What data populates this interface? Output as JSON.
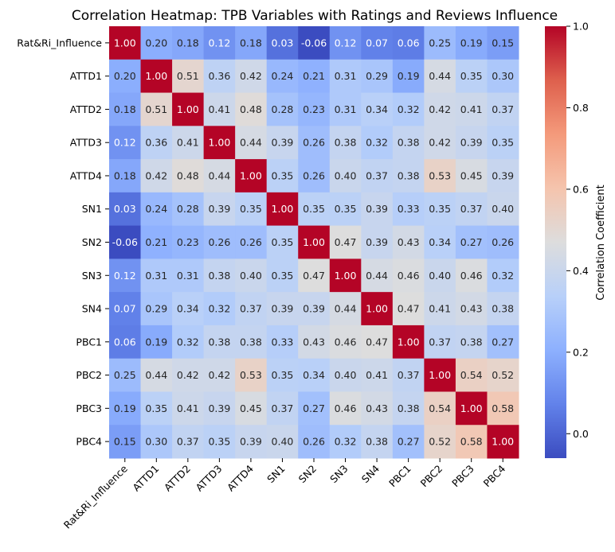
{
  "chart_data": {
    "type": "heatmap",
    "title": "Correlation Heatmap: TPB Variables with Ratings and Reviews Influence",
    "row_labels": [
      "Rat&Ri_Influence",
      "ATTD1",
      "ATTD2",
      "ATTD3",
      "ATTD4",
      "SN1",
      "SN2",
      "SN3",
      "SN4",
      "PBC1",
      "PBC2",
      "PBC3",
      "PBC4"
    ],
    "col_labels": [
      "Rat&Ri_Influence",
      "ATTD1",
      "ATTD2",
      "ATTD3",
      "ATTD4",
      "SN1",
      "SN2",
      "SN3",
      "SN4",
      "PBC1",
      "PBC2",
      "PBC3",
      "PBC4"
    ],
    "values": [
      [
        1.0,
        0.2,
        0.18,
        0.12,
        0.18,
        0.03,
        -0.06,
        0.12,
        0.07,
        0.06,
        0.25,
        0.19,
        0.15
      ],
      [
        0.2,
        1.0,
        0.51,
        0.36,
        0.42,
        0.24,
        0.21,
        0.31,
        0.29,
        0.19,
        0.44,
        0.35,
        0.3
      ],
      [
        0.18,
        0.51,
        1.0,
        0.41,
        0.48,
        0.28,
        0.23,
        0.31,
        0.34,
        0.32,
        0.42,
        0.41,
        0.37
      ],
      [
        0.12,
        0.36,
        0.41,
        1.0,
        0.44,
        0.39,
        0.26,
        0.38,
        0.32,
        0.38,
        0.42,
        0.39,
        0.35
      ],
      [
        0.18,
        0.42,
        0.48,
        0.44,
        1.0,
        0.35,
        0.26,
        0.4,
        0.37,
        0.38,
        0.53,
        0.45,
        0.39
      ],
      [
        0.03,
        0.24,
        0.28,
        0.39,
        0.35,
        1.0,
        0.35,
        0.35,
        0.39,
        0.33,
        0.35,
        0.37,
        0.4
      ],
      [
        -0.06,
        0.21,
        0.23,
        0.26,
        0.26,
        0.35,
        1.0,
        0.47,
        0.39,
        0.43,
        0.34,
        0.27,
        0.26
      ],
      [
        0.12,
        0.31,
        0.31,
        0.38,
        0.4,
        0.35,
        0.47,
        1.0,
        0.44,
        0.46,
        0.4,
        0.46,
        0.32
      ],
      [
        0.07,
        0.29,
        0.34,
        0.32,
        0.37,
        0.39,
        0.39,
        0.44,
        1.0,
        0.47,
        0.41,
        0.43,
        0.38
      ],
      [
        0.06,
        0.19,
        0.32,
        0.38,
        0.38,
        0.33,
        0.43,
        0.46,
        0.47,
        1.0,
        0.37,
        0.38,
        0.27
      ],
      [
        0.25,
        0.44,
        0.42,
        0.42,
        0.53,
        0.35,
        0.34,
        0.4,
        0.41,
        0.37,
        1.0,
        0.54,
        0.52
      ],
      [
        0.19,
        0.35,
        0.41,
        0.39,
        0.45,
        0.37,
        0.27,
        0.46,
        0.43,
        0.38,
        0.54,
        1.0,
        0.58
      ],
      [
        0.15,
        0.3,
        0.37,
        0.35,
        0.39,
        0.4,
        0.26,
        0.32,
        0.38,
        0.27,
        0.52,
        0.58,
        1.0
      ]
    ],
    "vmin": -0.06,
    "vmax": 1.0,
    "colormap": "coolwarm",
    "annotation_format": "2 decimals",
    "colorbar": {
      "label": "Correlation Coefficient",
      "ticks": [
        0.0,
        0.2,
        0.4,
        0.6,
        0.8,
        1.0
      ],
      "tick_labels": [
        "0.0",
        "0.2",
        "0.4",
        "0.6",
        "0.8",
        "1.0"
      ]
    },
    "xlabel": "",
    "ylabel": ""
  }
}
